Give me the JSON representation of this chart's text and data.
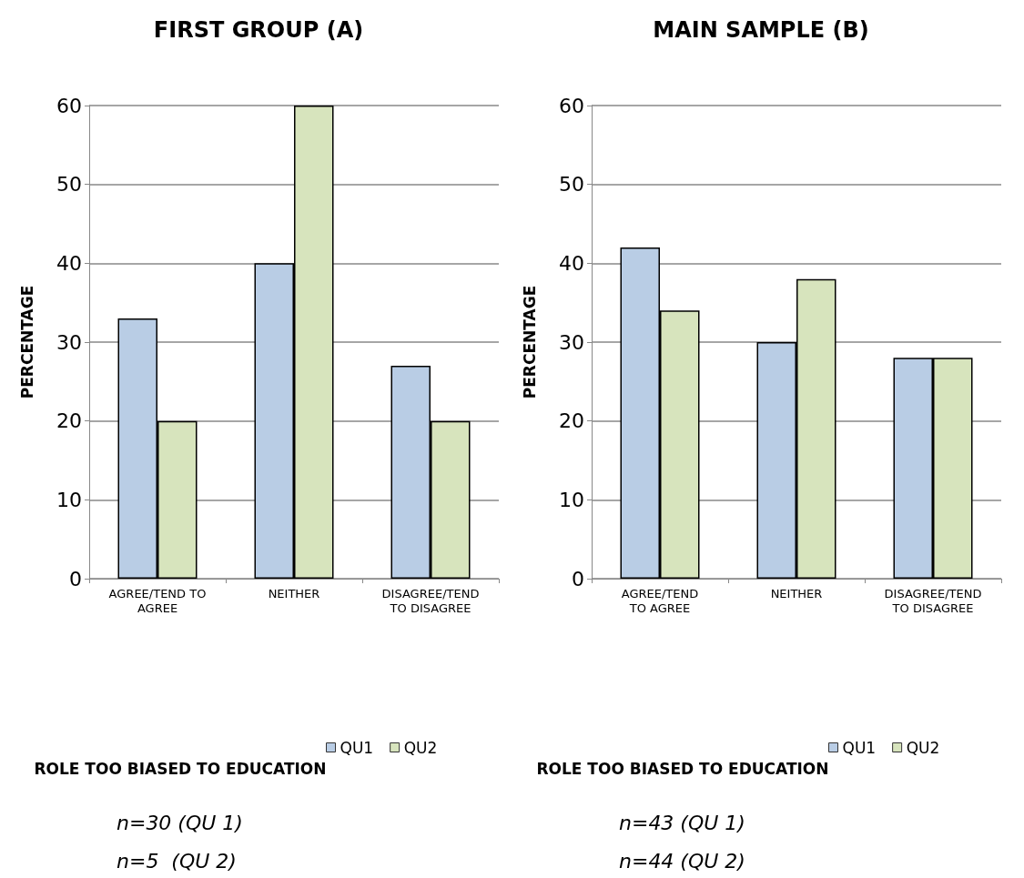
{
  "chart_data": [
    {
      "type": "bar",
      "title": "FIRST GROUP (A)",
      "ylabel": "PERCENTAGE",
      "xlabel": "ROLE TOO BIASED TO EDUCATION",
      "categories": [
        "AGREE/TEND TO\nAGREE",
        "NEITHER",
        "DISAGREE/TEND\nTO DISAGREE"
      ],
      "series": [
        {
          "name": "QU1",
          "color": "#b9cde5",
          "values": [
            33,
            40,
            27
          ]
        },
        {
          "name": "QU2",
          "color": "#d7e4bd",
          "values": [
            20,
            60,
            20
          ]
        }
      ],
      "ylim": [
        0,
        60
      ],
      "yticks": [
        0,
        10,
        20,
        30,
        40,
        50,
        60
      ],
      "grid": "y",
      "legend": "bottom",
      "annotations": [
        "n=30 (QU 1)",
        "n=5  (QU 2)"
      ]
    },
    {
      "type": "bar",
      "title": "MAIN SAMPLE (B)",
      "ylabel": "PERCENTAGE",
      "xlabel": "ROLE TOO BIASED TO EDUCATION",
      "categories": [
        "AGREE/TEND\nTO AGREE",
        "NEITHER",
        "DISAGREE/TEND\nTO DISAGREE"
      ],
      "series": [
        {
          "name": "QU1",
          "color": "#b9cde5",
          "values": [
            42,
            30,
            28
          ]
        },
        {
          "name": "QU2",
          "color": "#d7e4bd",
          "values": [
            34,
            38,
            28
          ]
        }
      ],
      "ylim": [
        0,
        60
      ],
      "yticks": [
        0,
        10,
        20,
        30,
        40,
        50,
        60
      ],
      "grid": "y",
      "legend": "bottom",
      "annotations": [
        "n=43 (QU 1)",
        "n=44 (QU 2)"
      ]
    }
  ]
}
